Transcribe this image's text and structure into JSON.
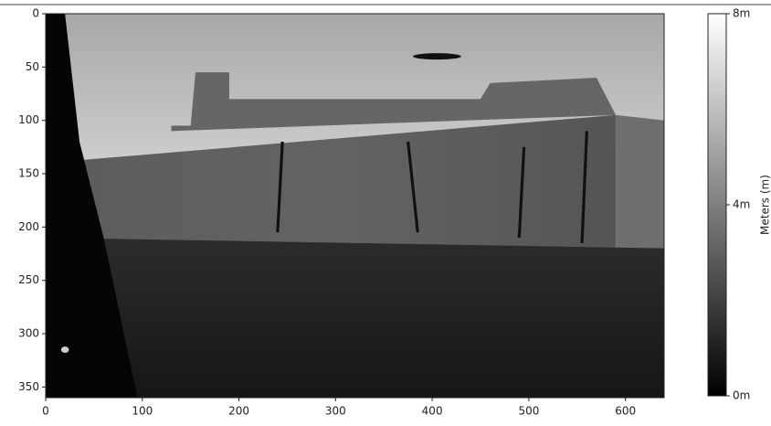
{
  "chart_data": {
    "type": "image",
    "xlim": [
      0,
      640
    ],
    "xticks": [
      0,
      100,
      200,
      300,
      400,
      500,
      600
    ],
    "ylim": [
      360,
      0
    ],
    "yticks": [
      0,
      50,
      100,
      150,
      200,
      250,
      300,
      350
    ],
    "colorbar": {
      "label": "Meters (m)",
      "clim": [
        0,
        8
      ],
      "ticks": [
        {
          "value": 0,
          "label": "0m"
        },
        {
          "value": 4,
          "label": "4m"
        },
        {
          "value": 8,
          "label": "8m"
        }
      ],
      "colors": [
        "#000000",
        "#ffffff"
      ]
    }
  }
}
